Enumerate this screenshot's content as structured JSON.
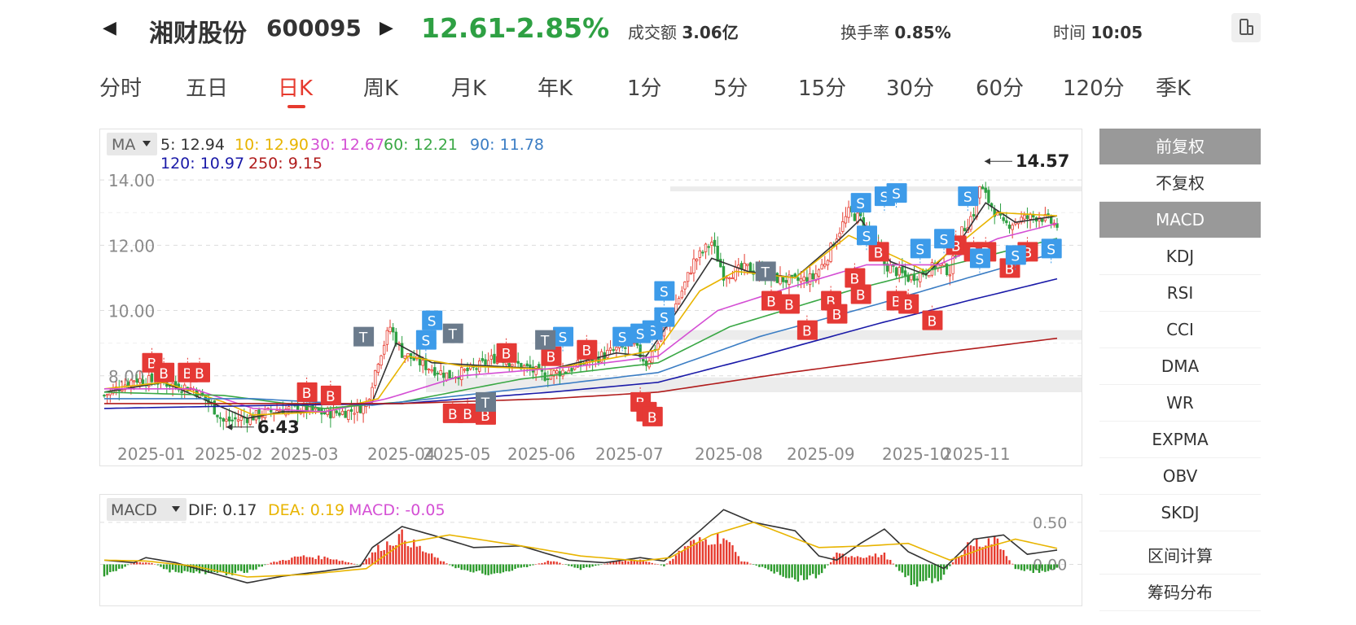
{
  "header": {
    "prev_icon": "triangle-left-icon",
    "name": "湘财股份",
    "code": "600095",
    "next_icon": "triangle-right-icon",
    "price": "12.61",
    "change": "-2.85%",
    "turnover_amount_label": "成交额",
    "turnover_amount": "3.06亿",
    "turnover_rate_label": "换手率",
    "turnover_rate": "0.85%",
    "time_label": "时间",
    "time": "10:05",
    "device_icon": "phone-rotate-icon",
    "down_color": "#2ea043",
    "up_color": "#e63a2e"
  },
  "tabs": [
    "分时",
    "五日",
    "日K",
    "周K",
    "月K",
    "年K",
    "1分",
    "5分",
    "15分",
    "30分",
    "60分",
    "120分",
    "季K"
  ],
  "active_tab": "日K",
  "ma_legend": {
    "selector": "MA",
    "items": [
      {
        "label": "5: 12.94",
        "color": "#333333"
      },
      {
        "label": "10: 12.90",
        "color": "#e8b400"
      },
      {
        "label": "30: 12.67",
        "color": "#d44fd4"
      },
      {
        "label": "60: 12.21",
        "color": "#3aa845"
      },
      {
        "label": "90: 11.78",
        "color": "#3b7dc4"
      },
      {
        "label": "120: 10.97",
        "color": "#1a1aa8"
      },
      {
        "label": "250: 9.15",
        "color": "#b01c1c"
      }
    ]
  },
  "macd_legend": {
    "selector": "MACD",
    "items": [
      {
        "label": "DIF: 0.17",
        "color": "#333333"
      },
      {
        "label": "DEA: 0.19",
        "color": "#e8b400"
      },
      {
        "label": "MACD: -0.05",
        "color": "#d44fd4"
      }
    ]
  },
  "chart_data": {
    "type": "candlestick",
    "y_ticks": [
      "14.00",
      "12.00",
      "10.00",
      "8.00"
    ],
    "ylim": [
      6.2,
      14.8
    ],
    "x_labels": [
      "2025-01",
      "2025-02",
      "2025-03",
      "2025-04",
      "2025-05",
      "2025-06",
      "2025-07",
      "2025-08",
      "2025-09",
      "2025-10",
      "2025-11"
    ],
    "max_label": "14.57",
    "min_label": "6.43",
    "close_anchors": [
      [
        0,
        7.4
      ],
      [
        10,
        7.9
      ],
      [
        20,
        7.8
      ],
      [
        30,
        7.6
      ],
      [
        36,
        7.1
      ],
      [
        40,
        6.6
      ],
      [
        50,
        6.75
      ],
      [
        58,
        6.95
      ],
      [
        66,
        7.0
      ],
      [
        74,
        6.85
      ],
      [
        82,
        6.9
      ],
      [
        88,
        7.1
      ],
      [
        92,
        8.5
      ],
      [
        96,
        9.5
      ],
      [
        100,
        8.7
      ],
      [
        108,
        8.3
      ],
      [
        116,
        8.0
      ],
      [
        124,
        8.2
      ],
      [
        132,
        8.6
      ],
      [
        140,
        8.3
      ],
      [
        148,
        8.0
      ],
      [
        156,
        8.2
      ],
      [
        164,
        8.5
      ],
      [
        172,
        8.8
      ],
      [
        178,
        8.9
      ],
      [
        182,
        8.4
      ],
      [
        186,
        9.0
      ],
      [
        190,
        9.8
      ],
      [
        194,
        10.6
      ],
      [
        198,
        11.5
      ],
      [
        204,
        12.1
      ],
      [
        208,
        11.1
      ],
      [
        216,
        11.3
      ],
      [
        224,
        11.0
      ],
      [
        232,
        10.9
      ],
      [
        238,
        11.0
      ],
      [
        242,
        11.5
      ],
      [
        246,
        12.3
      ],
      [
        250,
        13.0
      ],
      [
        254,
        12.8
      ],
      [
        258,
        12.2
      ],
      [
        262,
        11.4
      ],
      [
        270,
        11.0
      ],
      [
        276,
        11.2
      ],
      [
        280,
        11.4
      ],
      [
        284,
        11.2
      ],
      [
        288,
        12.4
      ],
      [
        292,
        13.0
      ],
      [
        294,
        13.8
      ],
      [
        298,
        13.2
      ],
      [
        302,
        12.6
      ],
      [
        308,
        12.8
      ],
      [
        314,
        12.9
      ],
      [
        320,
        12.6
      ]
    ],
    "ma_series": [
      {
        "name": "MA5",
        "color": "#333333",
        "anchors": [
          [
            0,
            7.5
          ],
          [
            20,
            7.8
          ],
          [
            38,
            7.1
          ],
          [
            48,
            6.7
          ],
          [
            60,
            6.9
          ],
          [
            74,
            6.9
          ],
          [
            90,
            7.2
          ],
          [
            98,
            9.0
          ],
          [
            110,
            8.4
          ],
          [
            130,
            8.3
          ],
          [
            150,
            8.2
          ],
          [
            172,
            8.7
          ],
          [
            182,
            8.6
          ],
          [
            194,
            10.2
          ],
          [
            204,
            11.6
          ],
          [
            216,
            11.2
          ],
          [
            232,
            11.0
          ],
          [
            246,
            12.1
          ],
          [
            254,
            12.8
          ],
          [
            264,
            11.5
          ],
          [
            276,
            11.1
          ],
          [
            288,
            12.2
          ],
          [
            296,
            13.3
          ],
          [
            306,
            12.7
          ],
          [
            320,
            12.9
          ]
        ]
      },
      {
        "name": "MA10",
        "color": "#e8b400",
        "anchors": [
          [
            0,
            7.6
          ],
          [
            20,
            7.8
          ],
          [
            40,
            7.2
          ],
          [
            50,
            6.8
          ],
          [
            74,
            6.9
          ],
          [
            92,
            7.3
          ],
          [
            102,
            8.6
          ],
          [
            120,
            8.3
          ],
          [
            150,
            8.2
          ],
          [
            174,
            8.6
          ],
          [
            186,
            8.8
          ],
          [
            200,
            10.6
          ],
          [
            212,
            11.2
          ],
          [
            232,
            11.0
          ],
          [
            250,
            12.3
          ],
          [
            262,
            11.8
          ],
          [
            276,
            11.2
          ],
          [
            292,
            12.4
          ],
          [
            300,
            13.0
          ],
          [
            320,
            12.9
          ]
        ]
      },
      {
        "name": "MA30",
        "color": "#d44fd4",
        "anchors": [
          [
            0,
            7.6
          ],
          [
            30,
            7.6
          ],
          [
            50,
            7.0
          ],
          [
            74,
            6.9
          ],
          [
            95,
            7.3
          ],
          [
            120,
            8.0
          ],
          [
            160,
            8.3
          ],
          [
            186,
            8.6
          ],
          [
            206,
            10.0
          ],
          [
            230,
            10.7
          ],
          [
            256,
            11.4
          ],
          [
            280,
            11.4
          ],
          [
            300,
            12.2
          ],
          [
            320,
            12.67
          ]
        ]
      },
      {
        "name": "MA60",
        "color": "#3aa845",
        "anchors": [
          [
            0,
            7.5
          ],
          [
            40,
            7.4
          ],
          [
            74,
            7.0
          ],
          [
            100,
            7.2
          ],
          [
            140,
            7.9
          ],
          [
            186,
            8.4
          ],
          [
            210,
            9.5
          ],
          [
            250,
            10.6
          ],
          [
            280,
            11.3
          ],
          [
            320,
            12.21
          ]
        ]
      },
      {
        "name": "MA90",
        "color": "#3b7dc4",
        "anchors": [
          [
            0,
            7.3
          ],
          [
            50,
            7.3
          ],
          [
            90,
            7.1
          ],
          [
            140,
            7.6
          ],
          [
            186,
            8.1
          ],
          [
            220,
            9.2
          ],
          [
            260,
            10.2
          ],
          [
            290,
            11.0
          ],
          [
            320,
            11.78
          ]
        ]
      },
      {
        "name": "MA120",
        "color": "#1a1aa8",
        "anchors": [
          [
            0,
            7.0
          ],
          [
            60,
            7.1
          ],
          [
            100,
            7.15
          ],
          [
            150,
            7.5
          ],
          [
            186,
            7.8
          ],
          [
            220,
            8.6
          ],
          [
            260,
            9.6
          ],
          [
            290,
            10.3
          ],
          [
            320,
            10.97
          ]
        ]
      },
      {
        "name": "MA250",
        "color": "#b01c1c",
        "anchors": [
          [
            0,
            7.15
          ],
          [
            100,
            7.15
          ],
          [
            150,
            7.3
          ],
          [
            186,
            7.5
          ],
          [
            230,
            8.1
          ],
          [
            280,
            8.7
          ],
          [
            320,
            9.15
          ]
        ]
      }
    ],
    "support_bands": [
      [
        9.1,
        9.4
      ],
      [
        7.5,
        7.95
      ],
      [
        13.7,
        13.8
      ]
    ],
    "trade_markers": {
      "buy": [
        {
          "i": 16,
          "y": 8.4
        },
        {
          "i": 20,
          "y": 8.1
        },
        {
          "i": 28,
          "y": 8.1
        },
        {
          "i": 32,
          "y": 8.1
        },
        {
          "i": 68,
          "y": 7.5
        },
        {
          "i": 76,
          "y": 7.4
        },
        {
          "i": 117,
          "y": 6.85
        },
        {
          "i": 122,
          "y": 6.85
        },
        {
          "i": 128,
          "y": 6.8
        },
        {
          "i": 135,
          "y": 8.7
        },
        {
          "i": 150,
          "y": 8.6
        },
        {
          "i": 162,
          "y": 8.8
        },
        {
          "i": 180,
          "y": 7.2
        },
        {
          "i": 182,
          "y": 6.9
        },
        {
          "i": 184,
          "y": 6.75
        },
        {
          "i": 224,
          "y": 10.3
        },
        {
          "i": 230,
          "y": 10.2
        },
        {
          "i": 236,
          "y": 9.4
        },
        {
          "i": 244,
          "y": 10.3
        },
        {
          "i": 246,
          "y": 9.9
        },
        {
          "i": 252,
          "y": 11.0
        },
        {
          "i": 254,
          "y": 10.5
        },
        {
          "i": 260,
          "y": 11.8
        },
        {
          "i": 266,
          "y": 10.3
        },
        {
          "i": 270,
          "y": 10.2
        },
        {
          "i": 278,
          "y": 9.7
        },
        {
          "i": 286,
          "y": 12.0
        },
        {
          "i": 292,
          "y": 11.8
        },
        {
          "i": 296,
          "y": 11.8
        },
        {
          "i": 304,
          "y": 11.3
        },
        {
          "i": 310,
          "y": 11.8
        }
      ],
      "sell": [
        {
          "i": 110,
          "y": 9.7
        },
        {
          "i": 108,
          "y": 9.1
        },
        {
          "i": 154,
          "y": 9.2
        },
        {
          "i": 174,
          "y": 9.2
        },
        {
          "i": 184,
          "y": 9.4
        },
        {
          "i": 180,
          "y": 9.3
        },
        {
          "i": 188,
          "y": 10.6
        },
        {
          "i": 188,
          "y": 9.8
        },
        {
          "i": 254,
          "y": 13.3
        },
        {
          "i": 256,
          "y": 12.3
        },
        {
          "i": 262,
          "y": 13.5
        },
        {
          "i": 266,
          "y": 13.6
        },
        {
          "i": 274,
          "y": 11.9
        },
        {
          "i": 282,
          "y": 12.2
        },
        {
          "i": 290,
          "y": 13.5
        },
        {
          "i": 294,
          "y": 11.6
        },
        {
          "i": 306,
          "y": 11.7
        },
        {
          "i": 318,
          "y": 11.9
        }
      ],
      "buy_color": "#e53935",
      "sell_color": "#3d9be9",
      "neutral_color": "#6b7b8c"
    },
    "macd": {
      "y_ticks": [
        "0.50",
        "0.00"
      ],
      "ylim": [
        -0.45,
        0.75
      ],
      "dif_anchors": [
        [
          0,
          0.05
        ],
        [
          10,
          0.02
        ],
        [
          14,
          0.08
        ],
        [
          24,
          0.02
        ],
        [
          36,
          -0.1
        ],
        [
          48,
          -0.22
        ],
        [
          60,
          -0.14
        ],
        [
          74,
          -0.08
        ],
        [
          86,
          -0.02
        ],
        [
          90,
          0.2
        ],
        [
          100,
          0.45
        ],
        [
          110,
          0.35
        ],
        [
          124,
          0.2
        ],
        [
          140,
          0.22
        ],
        [
          156,
          0.05
        ],
        [
          168,
          0.02
        ],
        [
          180,
          0.08
        ],
        [
          188,
          0.04
        ],
        [
          200,
          0.4
        ],
        [
          208,
          0.65
        ],
        [
          218,
          0.5
        ],
        [
          232,
          0.4
        ],
        [
          240,
          0.1
        ],
        [
          246,
          0.05
        ],
        [
          254,
          0.25
        ],
        [
          262,
          0.42
        ],
        [
          270,
          0.15
        ],
        [
          282,
          -0.05
        ],
        [
          292,
          0.3
        ],
        [
          302,
          0.35
        ],
        [
          310,
          0.12
        ],
        [
          320,
          0.17
        ]
      ],
      "dea_anchors": [
        [
          0,
          0.05
        ],
        [
          14,
          0.04
        ],
        [
          30,
          -0.02
        ],
        [
          48,
          -0.15
        ],
        [
          68,
          -0.12
        ],
        [
          88,
          -0.05
        ],
        [
          100,
          0.25
        ],
        [
          116,
          0.35
        ],
        [
          140,
          0.22
        ],
        [
          160,
          0.1
        ],
        [
          180,
          0.04
        ],
        [
          190,
          0.08
        ],
        [
          204,
          0.35
        ],
        [
          218,
          0.5
        ],
        [
          240,
          0.2
        ],
        [
          256,
          0.22
        ],
        [
          270,
          0.25
        ],
        [
          284,
          0.05
        ],
        [
          296,
          0.2
        ],
        [
          306,
          0.3
        ],
        [
          320,
          0.19
        ]
      ],
      "hist_anchors": [
        [
          0,
          -0.12
        ],
        [
          6,
          -0.05
        ],
        [
          10,
          0.03
        ],
        [
          16,
          0.02
        ],
        [
          22,
          -0.08
        ],
        [
          36,
          -0.12
        ],
        [
          48,
          -0.1
        ],
        [
          56,
          0.02
        ],
        [
          66,
          0.1
        ],
        [
          76,
          0.08
        ],
        [
          86,
          -0.01
        ],
        [
          92,
          0.2
        ],
        [
          100,
          0.35
        ],
        [
          108,
          0.15
        ],
        [
          118,
          -0.05
        ],
        [
          130,
          -0.12
        ],
        [
          140,
          -0.05
        ],
        [
          150,
          0.05
        ],
        [
          160,
          -0.06
        ],
        [
          172,
          0.04
        ],
        [
          180,
          0.06
        ],
        [
          188,
          -0.02
        ],
        [
          196,
          0.25
        ],
        [
          208,
          0.35
        ],
        [
          214,
          0.05
        ],
        [
          224,
          -0.08
        ],
        [
          232,
          -0.18
        ],
        [
          240,
          -0.14
        ],
        [
          246,
          0.12
        ],
        [
          256,
          0.1
        ],
        [
          262,
          0.12
        ],
        [
          272,
          -0.25
        ],
        [
          280,
          -0.2
        ],
        [
          290,
          0.25
        ],
        [
          300,
          0.3
        ],
        [
          306,
          -0.05
        ],
        [
          314,
          -0.1
        ],
        [
          320,
          -0.05
        ]
      ]
    }
  },
  "sidebar": {
    "items": [
      "前复权",
      "不复权",
      "MACD",
      "KDJ",
      "RSI",
      "CCI",
      "DMA",
      "WR",
      "EXPMA",
      "OBV",
      "SKDJ"
    ],
    "extras": [
      "区间计算",
      "筹码分布"
    ],
    "selected": [
      "前复权",
      "MACD"
    ]
  }
}
